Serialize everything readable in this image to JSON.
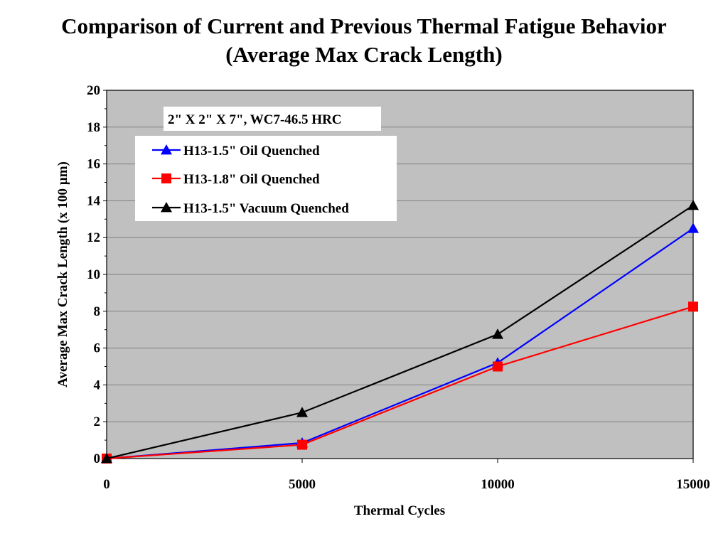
{
  "chart_data": {
    "type": "line",
    "title": "Comparison of Current and Previous Thermal Fatigue Behavior",
    "subtitle": "(Average Max Crack Length)",
    "xlabel": "Thermal Cycles",
    "ylabel": "Average Max Crack Length (x 100 µm)",
    "annotation": "2\" X 2\" X 7\", WC7-46.5 HRC",
    "xlim": [
      0,
      15000
    ],
    "ylim": [
      0,
      20
    ],
    "x_ticks": [
      0,
      5000,
      10000,
      15000
    ],
    "y_ticks": [
      0,
      2,
      4,
      6,
      8,
      10,
      12,
      14,
      16,
      18,
      20
    ],
    "grid": true,
    "legend_position": "top-left",
    "plot_background": "#c0c0c0",
    "series": [
      {
        "name": "H13-1.5\" Oil Quenched",
        "color": "#0000ff",
        "marker": "triangle",
        "x": [
          0,
          5000,
          10000,
          15000
        ],
        "y": [
          0,
          0.85,
          5.2,
          12.5
        ]
      },
      {
        "name": "H13-1.8\" Oil Quenched",
        "color": "#ff0000",
        "marker": "square",
        "x": [
          0,
          5000,
          10000,
          15000
        ],
        "y": [
          0,
          0.75,
          5.0,
          8.25
        ]
      },
      {
        "name": "H13-1.5\" Vacuum Quenched",
        "color": "#000000",
        "marker": "triangle",
        "x": [
          0,
          5000,
          10000,
          15000
        ],
        "y": [
          0,
          2.5,
          6.75,
          13.75
        ]
      }
    ]
  }
}
